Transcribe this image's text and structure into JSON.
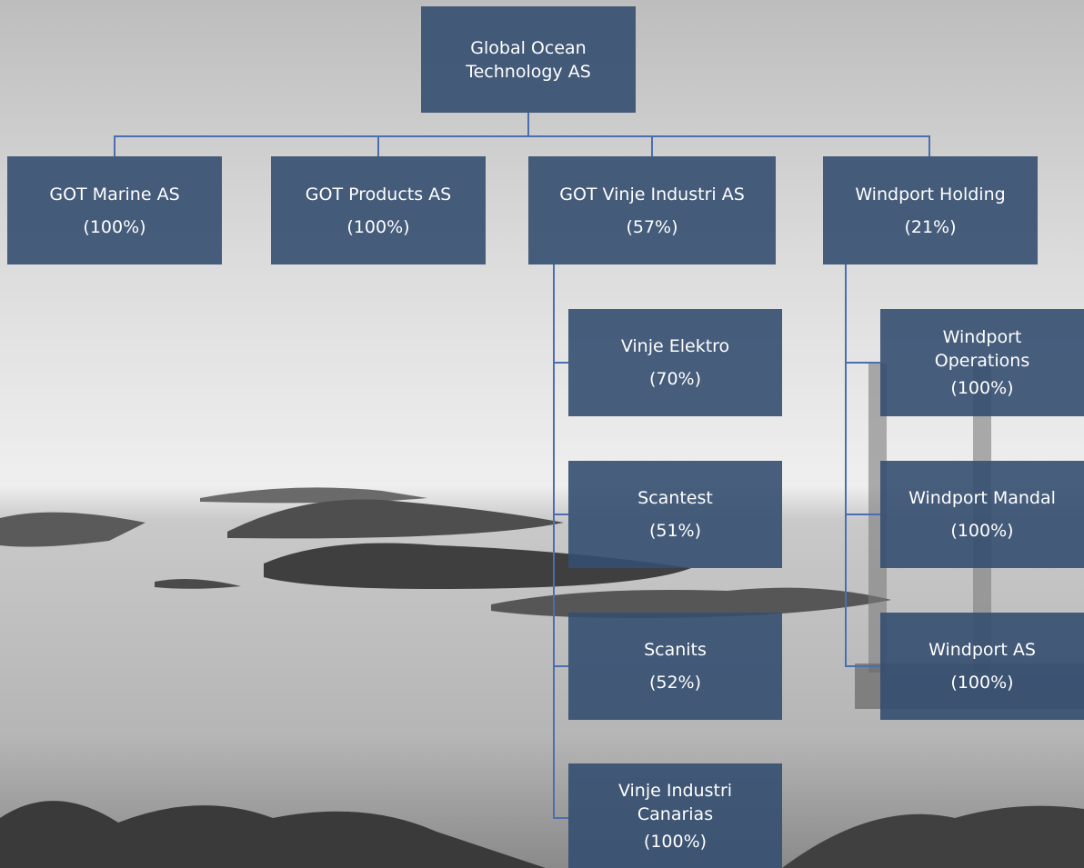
{
  "root": {
    "name": [
      "Global Ocean",
      "Technology AS"
    ]
  },
  "subsidiaries": [
    {
      "name": [
        "GOT Marine AS"
      ],
      "share": "(100%)"
    },
    {
      "name": [
        "GOT Products AS"
      ],
      "share": "(100%)"
    },
    {
      "name": [
        "GOT Vinje Industri AS"
      ],
      "share": "(57%)",
      "children": [
        {
          "name": [
            "Vinje Elektro"
          ],
          "share": "(70%)"
        },
        {
          "name": [
            "Scantest"
          ],
          "share": "(51%)"
        },
        {
          "name": [
            "Scanits"
          ],
          "share": "(52%)"
        },
        {
          "name": [
            "Vinje Industri",
            "Canarias"
          ],
          "share": "(100%)"
        }
      ]
    },
    {
      "name": [
        "Windport Holding"
      ],
      "share": "(21%)",
      "children": [
        {
          "name": [
            "Windport",
            "Operations"
          ],
          "share": "(100%)"
        },
        {
          "name": [
            "Windport Mandal"
          ],
          "share": "(100%)"
        },
        {
          "name": [
            "Windport AS"
          ],
          "share": "(100%)"
        }
      ]
    }
  ]
}
